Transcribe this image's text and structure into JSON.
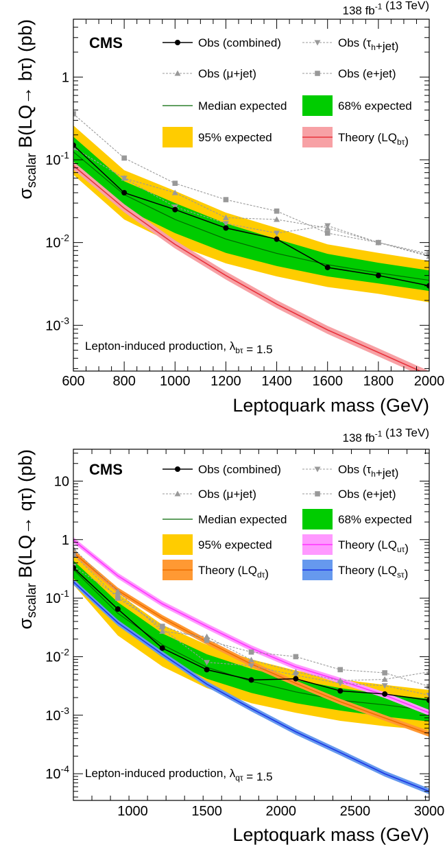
{
  "colors": {
    "band95": "#FFCC00",
    "band68": "#00CC00",
    "median": "#006600",
    "obs": "#000000",
    "obs_gray": "#999999",
    "theory_btau": "#E8323C",
    "theory_btau_band": "#F7A1A5",
    "theory_utau": "#FF33FF",
    "theory_utau_band": "#FF99FF",
    "theory_dtau": "#EE6E00",
    "theory_dtau_band": "#FF9933",
    "theory_stau": "#1A34E6",
    "theory_stau_band": "#6699EE"
  },
  "chart_data": [
    {
      "type": "line",
      "lumi_label": "138 fb",
      "lumi_exp": "-1",
      "energy_label": "(13 TeV)",
      "experiment": "CMS",
      "annotation": "Lepton-induced production, λ",
      "annotation_sub": "bτ",
      "annotation_value": " = 1.5",
      "ylabel": "σ",
      "ylabel_sub": "scalar",
      "ylabel_rest": "B(LQ→ bτ) (pb)",
      "xlabel": "Leptoquark mass (GeV)",
      "xscale": "linear",
      "yscale": "log",
      "xlim": [
        600,
        2000
      ],
      "ylim": [
        0.00028,
        5.0
      ],
      "xticks": [
        600,
        800,
        1000,
        1200,
        1400,
        1600,
        1800,
        2000
      ],
      "xtick_labels": [
        "600",
        "800",
        "1000",
        "1200",
        "1400",
        "1600",
        "1800",
        "2000"
      ],
      "yticks": [
        0.001,
        0.01,
        0.1,
        1
      ],
      "ytick_labels": [
        [
          "10",
          "-3"
        ],
        [
          "10",
          "-2"
        ],
        [
          "10",
          "-1"
        ],
        [
          "1",
          ""
        ]
      ],
      "x": [
        600,
        800,
        1000,
        1200,
        1400,
        1600,
        1800,
        2000
      ],
      "band95": {
        "low": [
          0.066,
          0.019,
          0.0095,
          0.0056,
          0.0039,
          0.0029,
          0.0024,
          0.0019
        ],
        "high": [
          0.26,
          0.075,
          0.042,
          0.023,
          0.015,
          0.0095,
          0.0075,
          0.006
        ]
      },
      "band68": {
        "low": [
          0.085,
          0.026,
          0.013,
          0.0075,
          0.0052,
          0.0039,
          0.0032,
          0.0026
        ],
        "high": [
          0.19,
          0.055,
          0.03,
          0.017,
          0.011,
          0.0073,
          0.0057,
          0.0046
        ]
      },
      "median": [
        0.125,
        0.038,
        0.019,
        0.011,
        0.0074,
        0.0054,
        0.0043,
        0.0035
      ],
      "obs_combined": [
        0.15,
        0.04,
        0.025,
        0.015,
        0.011,
        0.005,
        0.004,
        0.003
      ],
      "obs_tauh": [
        0.14,
        0.06,
        0.027,
        0.017,
        0.013,
        0.016,
        0.01,
        0.007
      ],
      "obs_mu": [
        0.14,
        0.06,
        0.04,
        0.02,
        0.019,
        0.015,
        0.01,
        0.0068
      ],
      "obs_e": [
        0.36,
        0.105,
        0.052,
        0.033,
        0.024,
        0.013,
        0.01,
        0.0073
      ],
      "theory": [
        {
          "name": "Theory (LQ",
          "sub": "bτ",
          "color_key": "theory_btau",
          "band_key": "theory_btau_band",
          "values": [
            0.085,
            0.026,
            0.0095,
            0.004,
            0.0018,
            0.00088,
            0.00047,
            0.00025
          ]
        }
      ],
      "legend": [
        {
          "key": "obs_combined",
          "label": "Obs (combined)",
          "sub": "",
          "tail": ""
        },
        {
          "key": "obs_tauh",
          "label": "Obs (τ",
          "sub": "h",
          "tail": "+jet)"
        },
        {
          "key": "obs_mu",
          "label": "Obs (μ+jet)",
          "sub": "",
          "tail": ""
        },
        {
          "key": "obs_e",
          "label": "Obs (e+jet)",
          "sub": "",
          "tail": ""
        },
        {
          "key": "median",
          "label": "Median expected",
          "sub": "",
          "tail": ""
        },
        {
          "key": "band68",
          "label": "68% expected",
          "sub": "",
          "tail": ""
        },
        {
          "key": "band95",
          "label": "95% expected",
          "sub": "",
          "tail": ""
        },
        {
          "key": "theory0",
          "label": "Theory (LQ",
          "sub": "bτ",
          "tail": ")"
        }
      ]
    },
    {
      "type": "line",
      "lumi_label": "138 fb",
      "lumi_exp": "-1",
      "energy_label": "(13 TeV)",
      "experiment": "CMS",
      "annotation": "Lepton-induced production, λ",
      "annotation_sub": "qτ",
      "annotation_value": " = 1.5",
      "ylabel": "σ",
      "ylabel_sub": "scalar",
      "ylabel_rest": "B(LQ→ qτ) (pb)",
      "xlabel": "Leptoquark mass (GeV)",
      "xscale": "linear",
      "yscale": "log",
      "xlim": [
        600,
        3000
      ],
      "ylim": [
        3.5e-05,
        35
      ],
      "xticks": [
        1000,
        1500,
        2000,
        2500,
        3000
      ],
      "xtick_labels": [
        "1000",
        "1500",
        "2000",
        "2500",
        "3000"
      ],
      "yticks": [
        0.0001,
        0.001,
        0.01,
        0.1,
        1,
        10
      ],
      "ytick_labels": [
        [
          "10",
          "-4"
        ],
        [
          "10",
          "-3"
        ],
        [
          "10",
          "-2"
        ],
        [
          "10",
          "-1"
        ],
        [
          "1",
          ""
        ],
        [
          "10",
          ""
        ]
      ],
      "x": [
        600,
        900,
        1200,
        1500,
        1800,
        2100,
        2400,
        2700,
        3000
      ],
      "band95": {
        "low": [
          0.17,
          0.023,
          0.0068,
          0.0029,
          0.0016,
          0.0011,
          0.0008,
          0.00065,
          0.00055
        ],
        "high": [
          0.6,
          0.12,
          0.035,
          0.016,
          0.009,
          0.0058,
          0.0041,
          0.0033,
          0.0027
        ]
      },
      "band68": {
        "low": [
          0.22,
          0.035,
          0.0098,
          0.0042,
          0.0024,
          0.0016,
          0.0012,
          0.00095,
          0.00078
        ],
        "high": [
          0.44,
          0.085,
          0.025,
          0.011,
          0.0062,
          0.004,
          0.0029,
          0.0023,
          0.0019
        ]
      },
      "median": [
        0.31,
        0.055,
        0.016,
        0.0066,
        0.0038,
        0.0025,
        0.0018,
        0.0015,
        0.0012
      ],
      "obs_combined": [
        0.33,
        0.065,
        0.014,
        0.006,
        0.004,
        0.0042,
        0.0026,
        0.0023,
        0.0018
      ],
      "obs_tauh": [
        0.35,
        0.11,
        0.03,
        0.008,
        0.007,
        0.0048,
        0.0035,
        0.0032,
        0.0022
      ],
      "obs_mu": [
        0.7,
        0.13,
        0.027,
        0.022,
        0.0088,
        0.0055,
        0.0039,
        0.0041,
        0.0055
      ],
      "obs_e": [
        0.56,
        0.1,
        0.033,
        0.019,
        0.012,
        0.01,
        0.006,
        0.0053,
        0.0031
      ],
      "theory": [
        {
          "name": "Theory (LQ",
          "sub": "uτ",
          "color_key": "theory_utau",
          "band_key": "theory_utau_band",
          "values": [
            0.98,
            0.24,
            0.08,
            0.033,
            0.014,
            0.0067,
            0.0039,
            0.0022,
            0.0011
          ]
        },
        {
          "name": "Theory (LQ",
          "sub": "dτ",
          "color_key": "theory_dtau",
          "band_key": "theory_dtau_band",
          "values": [
            0.6,
            0.135,
            0.046,
            0.018,
            0.0075,
            0.0035,
            0.0017,
            0.0009,
            0.00048
          ]
        },
        {
          "name": "Theory (LQ",
          "sub": "sτ",
          "color_key": "theory_stau",
          "band_key": "theory_stau_band",
          "values": [
            0.19,
            0.038,
            0.011,
            0.0034,
            0.0013,
            0.00052,
            0.00023,
            0.0001,
            5e-05
          ]
        }
      ],
      "legend": [
        {
          "key": "obs_combined",
          "label": "Obs (combined)",
          "sub": "",
          "tail": ""
        },
        {
          "key": "obs_tauh",
          "label": "Obs (τ",
          "sub": "h",
          "tail": "+jet)"
        },
        {
          "key": "obs_mu",
          "label": "Obs (μ+jet)",
          "sub": "",
          "tail": ""
        },
        {
          "key": "obs_e",
          "label": "Obs (e+jet)",
          "sub": "",
          "tail": ""
        },
        {
          "key": "median",
          "label": "Median expected",
          "sub": "",
          "tail": ""
        },
        {
          "key": "band68",
          "label": "68% expected",
          "sub": "",
          "tail": ""
        },
        {
          "key": "band95",
          "label": "95% expected",
          "sub": "",
          "tail": ""
        },
        {
          "key": "theory0",
          "label": "Theory (LQ",
          "sub": "uτ",
          "tail": ")"
        },
        {
          "key": "theory1",
          "label": "Theory (LQ",
          "sub": "dτ",
          "tail": ")"
        },
        {
          "key": "theory2",
          "label": "Theory (LQ",
          "sub": "sτ",
          "tail": ")"
        }
      ]
    }
  ]
}
